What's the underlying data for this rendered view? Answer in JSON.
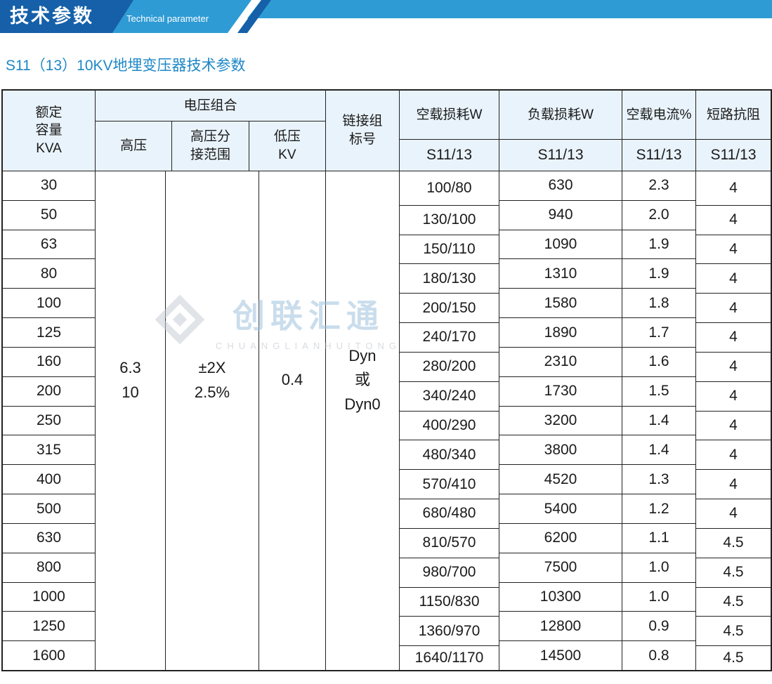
{
  "banner": {
    "title": "技术参数",
    "subtitle": "Technical parameter",
    "colors": {
      "dark_blue": "#1560a8",
      "light_blue": "#2f9bd4"
    }
  },
  "heading": "S11（13）10KV地埋变压器技术参数",
  "watermark": {
    "brand": "创联汇通",
    "latin": "CHUANGLIANHUITONG"
  },
  "table": {
    "header": {
      "capacity": "额定\n容量\nKVA",
      "voltage_group": "电压组合",
      "hv": "高压",
      "hv_tap": "高压分\n接范围",
      "lv": "低压\nKV",
      "vector_group": "链接组\n标号",
      "no_load_loss": "空载损耗W",
      "load_loss": "负载损耗W",
      "no_load_current": "空载电流%",
      "impedance": "短路抗阻",
      "model": "S11/13"
    },
    "merged": {
      "hv": "6.3\n10",
      "hv_tap": "±2X\n2.5%",
      "lv": "0.4",
      "vector": "Dyn\n或\nDyn0"
    },
    "columns": {
      "capacity": [
        "30",
        "50",
        "63",
        "80",
        "100",
        "125",
        "160",
        "200",
        "250",
        "315",
        "400",
        "500",
        "630",
        "800",
        "1000",
        "1250",
        "1600"
      ],
      "no_load_loss": [
        "100/80",
        "130/100",
        "150/110",
        "180/130",
        "200/150",
        "240/170",
        "280/200",
        "340/240",
        "400/290",
        "480/340",
        "570/410",
        "680/480",
        "810/570",
        "980/700",
        "1150/830",
        "1360/970",
        "1640/1170"
      ],
      "load_loss": [
        "630",
        "940",
        "1090",
        "1310",
        "1580",
        "1890",
        "2310",
        "1730",
        "3200",
        "3800",
        "4520",
        "5400",
        "6200",
        "7500",
        "10300",
        "12800",
        "14500"
      ],
      "no_load_current": [
        "2.3",
        "2.0",
        "1.9",
        "1.9",
        "1.8",
        "1.7",
        "1.6",
        "1.5",
        "1.4",
        "1.4",
        "1.3",
        "1.2",
        "1.1",
        "1.0",
        "1.0",
        "0.9",
        "0.8"
      ],
      "impedance": [
        "4",
        "4",
        "4",
        "4",
        "4",
        "4",
        "4",
        "4",
        "4",
        "4",
        "4",
        "4",
        "4.5",
        "4.5",
        "4.5",
        "4.5",
        "4.5"
      ]
    }
  }
}
